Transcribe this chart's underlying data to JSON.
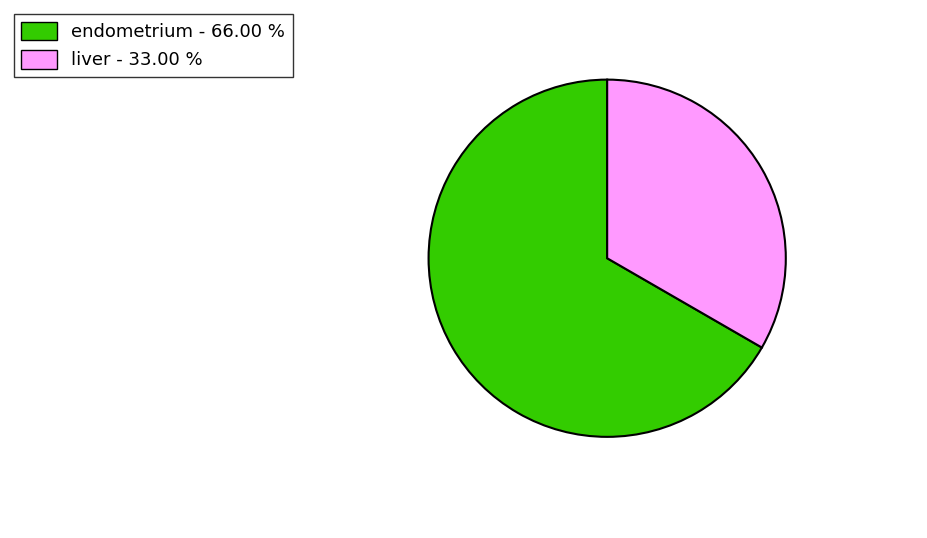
{
  "labels": [
    "endometrium - 66.00 %",
    "liver - 33.00 %"
  ],
  "values": [
    66.0,
    33.0
  ],
  "colors": [
    "#33cc00",
    "#ff99ff"
  ],
  "edge_color": "black",
  "edge_width": 1.5,
  "background_color": "#ffffff",
  "startangle": 90,
  "legend_fontsize": 13,
  "figsize": [
    9.27,
    5.38
  ],
  "dpi": 100
}
